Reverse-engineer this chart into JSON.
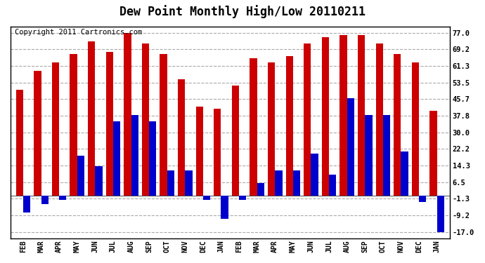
{
  "title": "Dew Point Monthly High/Low 20110211",
  "copyright": "Copyright 2011 Cartronics.com",
  "categories": [
    "FEB",
    "MAR",
    "APR",
    "MAY",
    "JUN",
    "JUL",
    "AUG",
    "SEP",
    "OCT",
    "NOV",
    "DEC",
    "JAN",
    "FEB",
    "MAR",
    "APR",
    "MAY",
    "JUN",
    "JUL",
    "AUG",
    "SEP",
    "OCT",
    "NOV",
    "DEC",
    "JAN"
  ],
  "highs": [
    50,
    59,
    63,
    67,
    73,
    68,
    77,
    72,
    67,
    55,
    42,
    41,
    52,
    65,
    63,
    66,
    72,
    75,
    76,
    76,
    72,
    67,
    63,
    40
  ],
  "lows": [
    -8,
    -4,
    -2,
    19,
    14,
    35,
    38,
    35,
    12,
    12,
    -2,
    -11,
    -2,
    6,
    12,
    12,
    20,
    10,
    46,
    38,
    38,
    21,
    -3,
    -17
  ],
  "high_color": "#cc0000",
  "low_color": "#0000cc",
  "bg_color": "#ffffff",
  "plot_bg_color": "#ffffff",
  "grid_color": "#aaaaaa",
  "yticks": [
    -17.0,
    -9.2,
    -1.3,
    6.5,
    14.3,
    22.2,
    30.0,
    37.8,
    45.7,
    53.5,
    61.3,
    69.2,
    77.0
  ],
  "ylim": [
    -20,
    80
  ],
  "title_fontsize": 12,
  "copyright_fontsize": 7.5,
  "bar_width": 0.4
}
